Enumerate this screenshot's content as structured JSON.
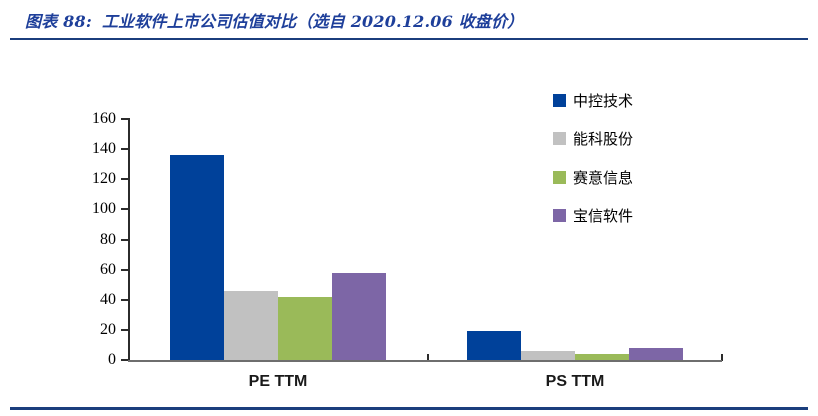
{
  "title": {
    "figure_label": "图表 88:",
    "text": "工业软件上市公司估值对比（选自 2020.12.06 收盘价）"
  },
  "chart_data": {
    "type": "bar",
    "title": "工业软件上市公司估值对比（选自 2020.12.06 收盘价）",
    "categories": [
      "PE TTM",
      "PS TTM"
    ],
    "series": [
      {
        "name": "中控技术",
        "color": "#00419a",
        "values": [
          136,
          19
        ]
      },
      {
        "name": "能科股份",
        "color": "#c1c1c1",
        "values": [
          46,
          6
        ]
      },
      {
        "name": "赛意信息",
        "color": "#9aba59",
        "values": [
          42,
          4
        ]
      },
      {
        "name": "宝信软件",
        "color": "#7d66a6",
        "values": [
          58,
          8
        ]
      }
    ],
    "xlabel": "",
    "ylabel": "",
    "ylim": [
      0,
      160
    ],
    "yticks": [
      0,
      20,
      40,
      60,
      80,
      100,
      120,
      140,
      160
    ],
    "grid": false,
    "legend_position": "right"
  },
  "colors": {
    "title_text": "#1e3f9a",
    "rule": "#1b3e7d",
    "axis_line": "#2b2b2b",
    "baseline": "#6e6e6e"
  }
}
